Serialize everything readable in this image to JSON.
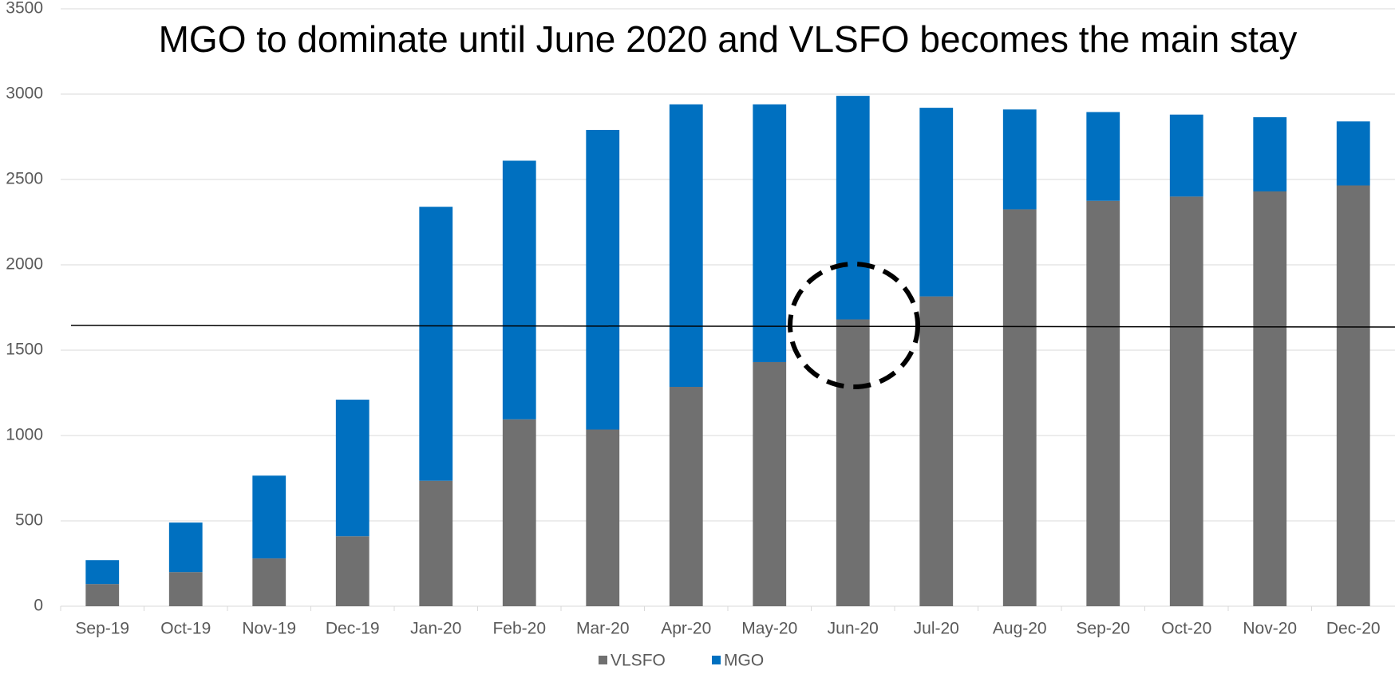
{
  "chart_data": {
    "type": "stacked_bar",
    "title": "MGO to dominate until June 2020 and VLSFO becomes the main stay",
    "categories": [
      "Sep-19",
      "Oct-19",
      "Nov-19",
      "Dec-19",
      "Jan-20",
      "Feb-20",
      "Mar-20",
      "Apr-20",
      "May-20",
      "Jun-20",
      "Jul-20",
      "Aug-20",
      "Sep-20",
      "Oct-20",
      "Nov-20",
      "Dec-20"
    ],
    "series": [
      {
        "name": "VLSFO",
        "color": "#707070",
        "values": [
          130,
          200,
          280,
          410,
          735,
          1095,
          1035,
          1285,
          1430,
          1680,
          1815,
          2325,
          2375,
          2400,
          2430,
          2465
        ]
      },
      {
        "name": "MGO",
        "color": "#0070c0",
        "values": [
          140,
          290,
          485,
          800,
          1605,
          1515,
          1755,
          1655,
          1510,
          1310,
          1105,
          585,
          520,
          480,
          435,
          375
        ]
      }
    ],
    "ylim": [
      0,
      3500
    ],
    "yticks": [
      0,
      500,
      1000,
      1500,
      2000,
      2500,
      3000,
      3500
    ],
    "grid": true,
    "legend": "bottom"
  }
}
